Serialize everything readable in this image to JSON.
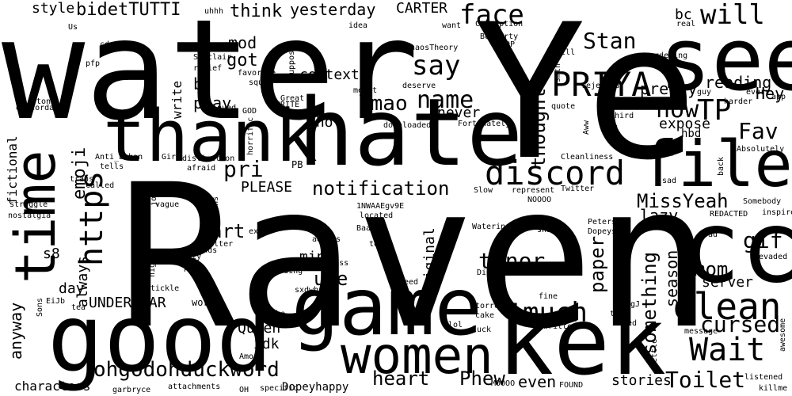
{
  "colors": {
    "background": "#ffffff",
    "text": "#000000"
  },
  "words": [
    "water",
    "Raven",
    "Ye",
    "see",
    "cc",
    "hate",
    "thank",
    "time",
    "good",
    "game",
    "kek",
    "women",
    "file",
    "discord",
    "clean",
    "PRIYA",
    "Wait",
    "face",
    "will",
    "TP",
    "Fav",
    "now",
    "Stan",
    "say",
    "name",
    "https",
    "emoji",
    "lmao",
    "tenor",
    "much",
    "cursed",
    "heart",
    "Phew",
    "Toilet",
    "ohgodohduckword",
    "MissYeah",
    "gif",
    "mom",
    "paper",
    "something",
    "season",
    "pretty",
    "reading",
    "expose",
    "Hey",
    "thought",
    "notification",
    "PLEASE",
    "Tho",
    "context",
    "mind",
    "use",
    "art",
    "lazy",
    "server",
    "stories",
    "even",
    "Queen",
    "idk",
    "Original",
    "UNDERWEAR",
    "day",
    "always",
    "anyway",
    "characters",
    "s8",
    "fictional",
    "pri",
    "play",
    "write",
    "b",
    "got",
    "mod",
    "think",
    "yesterday",
    "CARTER",
    "bidetTUTTI",
    "style",
    "bc",
    "never",
    "hbd",
    "Dopeyhappy",
    "sxdwhxf",
    "Dick",
    "Alabama",
    "Peters",
    "Dopeysad",
    "Watering",
    "shit",
    "Baa",
    "located",
    "1NWAAEgv9E",
    "Slow",
    "represent",
    "Twitter",
    "Somebody",
    "inspired",
    "REDACTED",
    "guy",
    "bad",
    "evaded",
    "admins",
    "business",
    "minding",
    "told",
    "need",
    "torrent",
    "cake",
    "luck",
    "Unwritten",
    "lol",
    "fine",
    "ZLgJ",
    "used",
    "tf",
    "message",
    "awesome",
    "kettle",
    "listened",
    "killme",
    "FOUND",
    "MOOOO",
    "specific",
    "OH",
    "attachments",
    "garbryce",
    "Among",
    "Duke",
    "work",
    "tea",
    "Sons",
    "EiJb",
    "tickle",
    "night",
    "png",
    "suddenly",
    "reminds",
    "filter",
    "happens",
    "exist",
    "job",
    "vague",
    "nostalgia",
    "struggle",
    "called",
    "trans",
    "tells",
    "Anti_Ethan",
    "Girl",
    "distinction",
    "afraid",
    "horrific",
    "PB",
    "Cleanliness",
    "sad",
    "back",
    "Absolutely",
    "third",
    "Aww",
    "Ugh",
    "Fortunately",
    "downloaded",
    "deserve",
    "meant",
    "quote",
    "rejected",
    "harder",
    "every",
    "app",
    "gardening",
    "indian",
    "real",
    "smth",
    "still",
    "STOP",
    "BooParty",
    "Corruption",
    "want",
    "idea",
    "ChaosTheory",
    "Min",
    "supposed",
    "Us",
    "cdn",
    "pfp",
    "uhhh",
    "ton",
    "discordapp",
    "relief",
    "favorite",
    "squad",
    "Sinclair",
    "loved",
    "GOD",
    "Great",
    "SPRITE",
    "NOOOO"
  ]
}
